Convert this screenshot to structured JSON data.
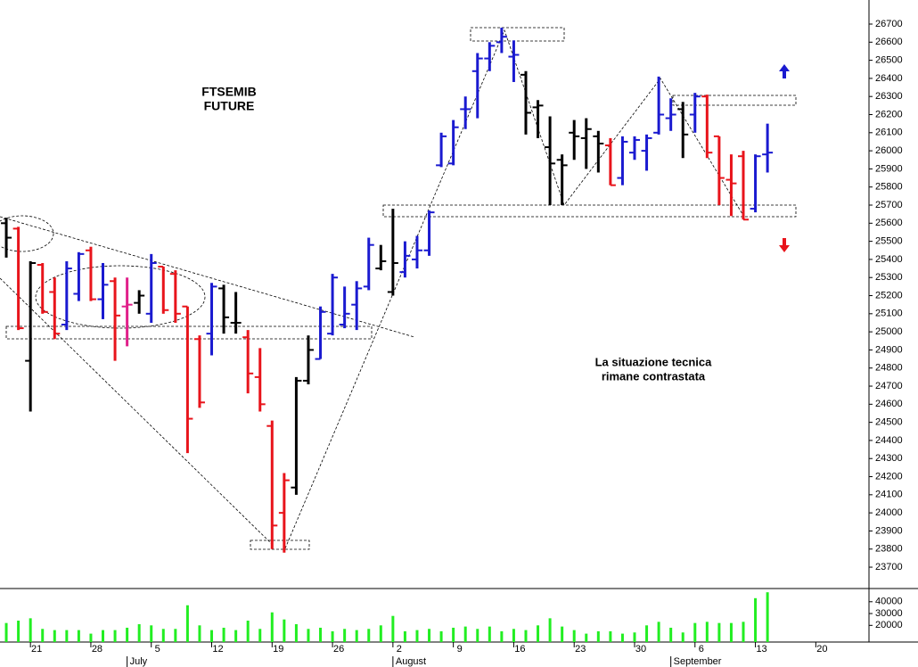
{
  "chart_data": [
    {
      "type": "ohlc",
      "title": [
        "FTSEMIB",
        "FUTURE"
      ],
      "annotation": [
        "La situazione tecnica",
        "rimane contrastata"
      ],
      "x": [
        0,
        1,
        2,
        3,
        4,
        5,
        6,
        7,
        8,
        9,
        10,
        11,
        12,
        13,
        14,
        15,
        16,
        17,
        18,
        19,
        20,
        21,
        22,
        23,
        24,
        25,
        26,
        27,
        28,
        29,
        30,
        31,
        32,
        33,
        34,
        35,
        36,
        37,
        38,
        39,
        40,
        41,
        42,
        43,
        44,
        45,
        46,
        47,
        48,
        49,
        50,
        51,
        52,
        53,
        54,
        55,
        56,
        57,
        58,
        59,
        60,
        61,
        62,
        63
      ],
      "open": [
        25600,
        25570,
        24840,
        25370,
        25220,
        25040,
        25210,
        25450,
        25180,
        25280,
        25140,
        25160,
        25100,
        25360,
        25320,
        25140,
        24960,
        24990,
        25240,
        25050,
        24970,
        24750,
        24480,
        24000,
        24140,
        24730,
        24850,
        24990,
        25040,
        25150,
        25250,
        25350,
        25220,
        25330,
        25400,
        25450,
        25920,
        25930,
        26230,
        26440,
        26510,
        26600,
        26520,
        26420,
        26240,
        26020,
        25950,
        26100,
        26070,
        26080,
        26030,
        25850,
        25990,
        26000,
        26100,
        26180,
        26230,
        26200,
        26300,
        26080,
        25840,
        25970,
        25680,
        25980
      ],
      "high": [
        25630,
        25580,
        25390,
        25380,
        25300,
        25390,
        25440,
        25470,
        25380,
        25300,
        25300,
        25230,
        25430,
        25360,
        25340,
        25140,
        24980,
        25270,
        25260,
        25220,
        25010,
        24910,
        24510,
        24220,
        24750,
        24980,
        25140,
        25320,
        25250,
        25280,
        25520,
        25480,
        25680,
        25500,
        25530,
        25670,
        26100,
        26170,
        26300,
        26540,
        26600,
        26680,
        26610,
        26440,
        26280,
        26190,
        25980,
        26170,
        26180,
        26110,
        26070,
        26080,
        26080,
        26090,
        26410,
        26290,
        26270,
        26320,
        26310,
        26080,
        25980,
        26000,
        25980,
        26150
      ],
      "low": [
        25410,
        25010,
        24560,
        25100,
        24960,
        25010,
        25170,
        25170,
        25070,
        24840,
        24920,
        25100,
        25050,
        25100,
        25050,
        24330,
        24580,
        24870,
        24990,
        24990,
        24660,
        24560,
        23800,
        23780,
        24100,
        24710,
        24850,
        24980,
        25020,
        25010,
        25230,
        25340,
        25200,
        25300,
        25350,
        25420,
        25910,
        25920,
        26120,
        26180,
        26440,
        26540,
        26380,
        26090,
        26070,
        25700,
        25700,
        25950,
        25900,
        25880,
        25810,
        25810,
        25950,
        25890,
        26090,
        26110,
        25960,
        26100,
        25960,
        25700,
        25640,
        25620,
        25660,
        25880
      ],
      "close": [
        25520,
        25020,
        25380,
        25110,
        24990,
        25350,
        25430,
        25180,
        25260,
        25090,
        25150,
        25200,
        25380,
        25120,
        25100,
        24520,
        24610,
        25250,
        25080,
        25050,
        24770,
        24600,
        23930,
        24180,
        24730,
        24900,
        25110,
        25300,
        25100,
        25240,
        25480,
        25390,
        25380,
        25420,
        25450,
        25660,
        26080,
        26130,
        26230,
        26510,
        26580,
        26630,
        26530,
        26210,
        26250,
        25930,
        25920,
        26080,
        26120,
        26040,
        25810,
        26050,
        26060,
        26070,
        26200,
        26200,
        26090,
        26300,
        25990,
        25850,
        25820,
        25620,
        25970,
        25990
      ],
      "colors": [
        "#000000",
        "#e8141b",
        "#000000",
        "#e8141b",
        "#e8141b",
        "#1a1ad0",
        "#1a1ad0",
        "#e8141b",
        "#1a1ad0",
        "#e8141b",
        "#e0208a",
        "#000000",
        "#1a1ad0",
        "#e8141b",
        "#e8141b",
        "#e8141b",
        "#e8141b",
        "#1a1ad0",
        "#000000",
        "#000000",
        "#e8141b",
        "#e8141b",
        "#e8141b",
        "#e8141b",
        "#000000",
        "#000000",
        "#1a1ad0",
        "#1a1ad0",
        "#1a1ad0",
        "#1a1ad0",
        "#1a1ad0",
        "#000000",
        "#000000",
        "#1a1ad0",
        "#1a1ad0",
        "#1a1ad0",
        "#1a1ad0",
        "#1a1ad0",
        "#1a1ad0",
        "#1a1ad0",
        "#1a1ad0",
        "#1a1ad0",
        "#1a1ad0",
        "#000000",
        "#000000",
        "#000000",
        "#000000",
        "#000000",
        "#000000",
        "#000000",
        "#e8141b",
        "#1a1ad0",
        "#1a1ad0",
        "#1a1ad0",
        "#1a1ad0",
        "#1a1ad0",
        "#000000",
        "#1a1ad0",
        "#e8141b",
        "#e8141b",
        "#e8141b",
        "#e8141b",
        "#1a1ad0",
        "#1a1ad0"
      ],
      "xlim": [
        -0.52,
        71.4
      ],
      "ylim": [
        23582,
        26833
      ],
      "yticks": [
        23700,
        23800,
        23900,
        24000,
        24100,
        24200,
        24300,
        24400,
        24500,
        24600,
        24700,
        24800,
        24900,
        25000,
        25100,
        25200,
        25300,
        25400,
        25500,
        25600,
        25700,
        25800,
        25900,
        26000,
        26100,
        26200,
        26300,
        26400,
        26500,
        26600,
        26700
      ]
    },
    {
      "type": "bar",
      "x": [
        0,
        1,
        2,
        3,
        4,
        5,
        6,
        7,
        8,
        9,
        10,
        11,
        12,
        13,
        14,
        15,
        16,
        17,
        18,
        19,
        20,
        21,
        22,
        23,
        24,
        25,
        26,
        27,
        28,
        29,
        30,
        31,
        32,
        33,
        34,
        35,
        36,
        37,
        38,
        39,
        40,
        41,
        42,
        43,
        44,
        45,
        46,
        47,
        48,
        49,
        50,
        51,
        52,
        53,
        54,
        55,
        56,
        57,
        58,
        59,
        60,
        61,
        62,
        63
      ],
      "values": [
        22000,
        24000,
        26000,
        17000,
        16000,
        16000,
        16000,
        13000,
        16000,
        16000,
        18000,
        21000,
        20000,
        17000,
        17000,
        37000,
        20000,
        16000,
        18000,
        16000,
        24000,
        17000,
        31000,
        25000,
        21000,
        17000,
        18000,
        15000,
        17000,
        16000,
        17000,
        20000,
        28000,
        15000,
        16000,
        17000,
        15000,
        18000,
        19000,
        17000,
        19000,
        15000,
        17000,
        16000,
        20000,
        26000,
        19000,
        16000,
        13000,
        15000,
        15000,
        13000,
        14000,
        20000,
        23000,
        18000,
        14000,
        22000,
        23000,
        22000,
        22000,
        23000,
        43000,
        48000
      ],
      "color": "#22ee22",
      "xlim": [
        -0.52,
        71.4
      ],
      "ylim": [
        5900,
        50400
      ],
      "yticks": [
        20000,
        30000,
        40000
      ],
      "xticks": [
        {
          "value": 2,
          "label": "21"
        },
        {
          "value": 7,
          "label": "28"
        },
        {
          "value": 12,
          "label": "5"
        },
        {
          "value": 17,
          "label": "12"
        },
        {
          "value": 22,
          "label": "19"
        },
        {
          "value": 27,
          "label": "26"
        },
        {
          "value": 32,
          "label": "2"
        },
        {
          "value": 37,
          "label": "9"
        },
        {
          "value": 42,
          "label": "16"
        },
        {
          "value": 47,
          "label": "23"
        },
        {
          "value": 52,
          "label": "30"
        },
        {
          "value": 57,
          "label": "6"
        },
        {
          "value": 62,
          "label": "13"
        },
        {
          "value": 67,
          "label": "20"
        }
      ],
      "months": [
        {
          "value": 10,
          "label": "July"
        },
        {
          "value": 32,
          "label": "August"
        },
        {
          "value": 55,
          "label": "September"
        }
      ]
    }
  ]
}
